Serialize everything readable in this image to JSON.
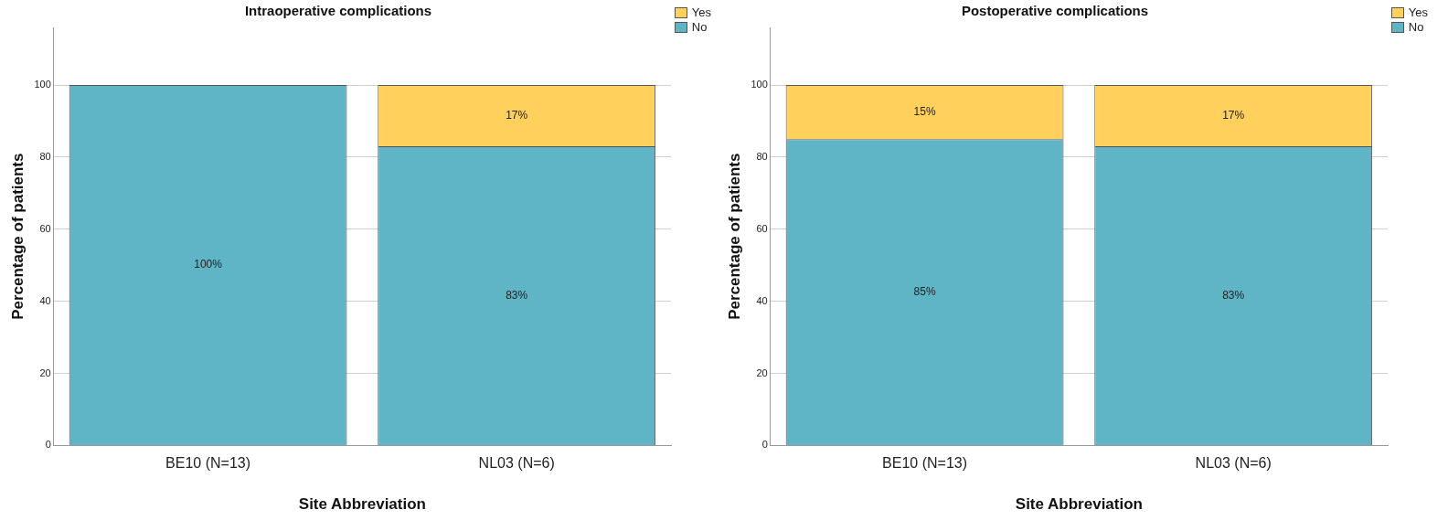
{
  "chart_data": [
    {
      "type": "bar",
      "title": "Intraoperative complications",
      "xlabel": "Site Abbreviation",
      "ylabel": "Percentage of patients",
      "categories": [
        "BE10 (N=13)",
        "NL03 (N=6)"
      ],
      "stacked": true,
      "ylim": [
        0,
        116
      ],
      "yticks": [
        0,
        20,
        40,
        60,
        80,
        100
      ],
      "grid": "y",
      "legend": "top right",
      "series": [
        {
          "name": "No",
          "color": "#5fb4c6",
          "values": [
            100,
            83
          ],
          "value_labels": [
            "100%",
            "83%"
          ]
        },
        {
          "name": "Yes",
          "color": "#ffd05c",
          "values": [
            0,
            17
          ],
          "value_labels": [
            null,
            "17%"
          ]
        }
      ]
    },
    {
      "type": "bar",
      "title": "Postoperative complications",
      "xlabel": "Site Abbreviation",
      "ylabel": "Percentage of patients",
      "categories": [
        "BE10 (N=13)",
        "NL03 (N=6)"
      ],
      "stacked": true,
      "ylim": [
        0,
        116
      ],
      "yticks": [
        0,
        20,
        40,
        60,
        80,
        100
      ],
      "grid": "y",
      "legend": "top right",
      "series": [
        {
          "name": "No",
          "color": "#5fb4c6",
          "values": [
            85,
            83
          ],
          "value_labels": [
            "85%",
            "83%"
          ]
        },
        {
          "name": "Yes",
          "color": "#ffd05c",
          "values": [
            15,
            17
          ],
          "value_labels": [
            "15%",
            "17%"
          ]
        }
      ]
    }
  ]
}
